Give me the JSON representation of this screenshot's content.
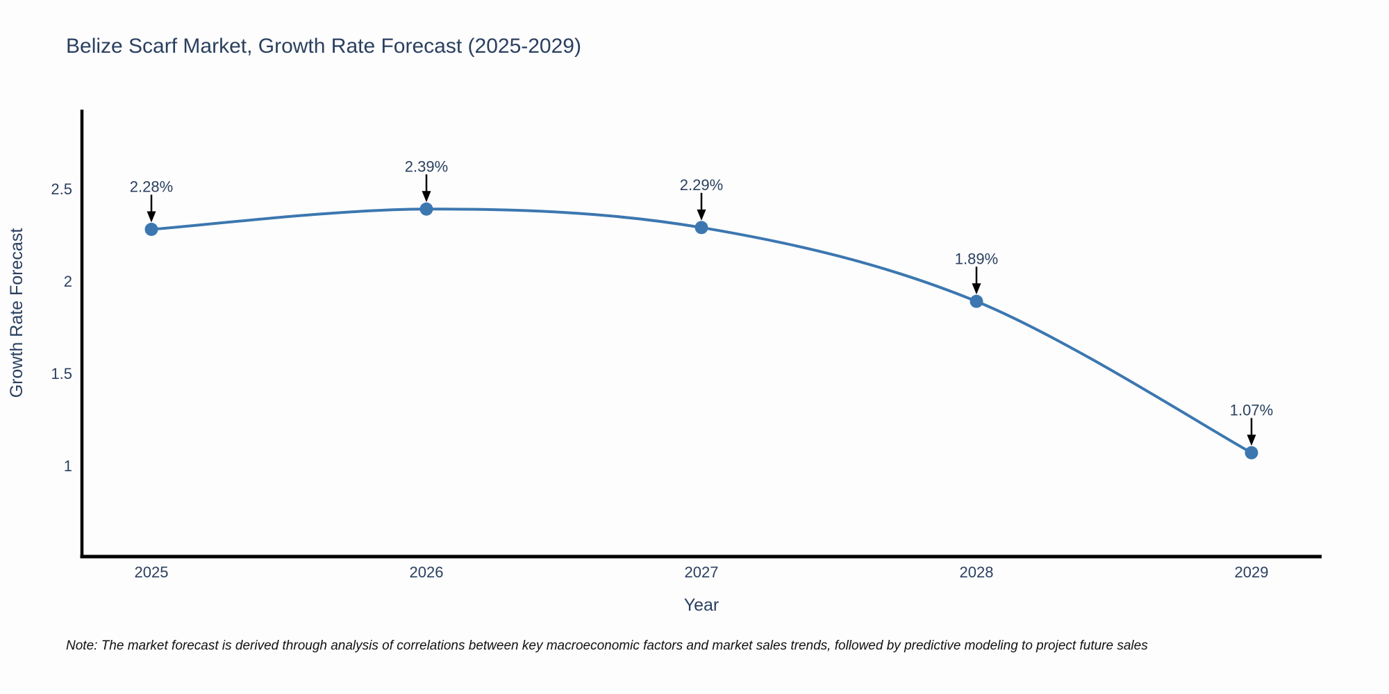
{
  "chart_data": {
    "type": "line",
    "title": "Belize Scarf Market, Growth Rate Forecast (2025-2029)",
    "xlabel": "Year",
    "ylabel": "Growth Rate Forecast",
    "x": [
      2025,
      2026,
      2027,
      2028,
      2029
    ],
    "values": [
      2.28,
      2.39,
      2.29,
      1.89,
      1.07
    ],
    "point_labels": [
      "2.28%",
      "2.39%",
      "2.29%",
      "1.89%",
      "1.07%"
    ],
    "x_tick_labels": [
      "2025",
      "2026",
      "2027",
      "2028",
      "2029"
    ],
    "y_ticks": [
      2.5,
      2,
      1.5,
      1
    ],
    "y_tick_labels": [
      "2.5",
      "2",
      "1.5",
      "1"
    ],
    "xlim": [
      2024.75,
      2029.25
    ],
    "ylim": [
      0.51,
      2.92
    ],
    "grid": false,
    "legend": "none",
    "line_shape": "spline",
    "colors": {
      "line": "#3c77b0",
      "marker": "#3c77b0",
      "axis": "#000000",
      "text": "#2a3f5f",
      "annotation_arrow": "#000000",
      "background": "#fdfdfd"
    }
  },
  "note": "Note: The market forecast is derived through analysis of correlations between key macroeconomic factors and market sales trends, followed by predictive modeling to project future sales"
}
